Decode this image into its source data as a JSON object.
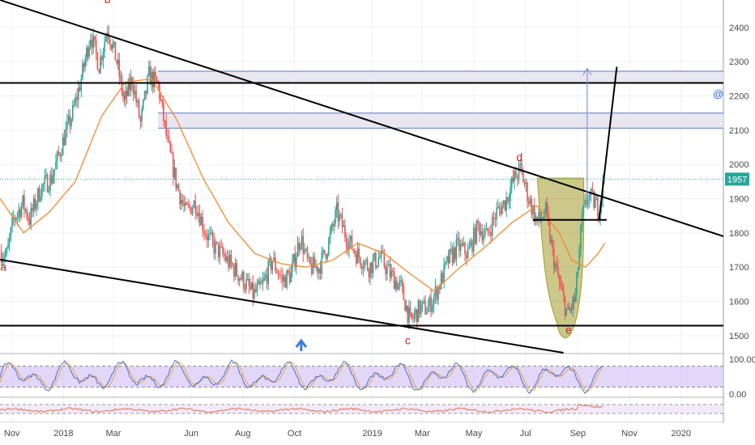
{
  "chart_data": {
    "type": "candlestick",
    "colors": {
      "up": "#26a69a",
      "down": "#ef5350",
      "ma": "#f28a2e",
      "hline": "#000000",
      "zone_line": "#5b7bc0",
      "zone_fill": "#e8e6ef",
      "cup": "#a29a2a",
      "price_badge": "#26a69a",
      "arrow": "#3b7dd8",
      "osc_band": "#d6c4f7",
      "osc_k": "#4d6bd6",
      "osc_d": "#e4a93b",
      "osc2": "#e1744c",
      "wave_label": "#c62828"
    },
    "grid": true,
    "y_axis": {
      "side": "right",
      "range": [
        1450,
        2480
      ],
      "ticks": [
        1500,
        1600,
        1700,
        1800,
        1900,
        2000,
        2100,
        2200,
        2300,
        2400
      ]
    },
    "x_axis": {
      "range": [
        "2017-10-18",
        "2020-02-20"
      ],
      "ticks": [
        {
          "date": "2017-11-01",
          "label": "Nov"
        },
        {
          "date": "2018-01-01",
          "label": "2018"
        },
        {
          "date": "2018-03-01",
          "label": "Mar"
        },
        {
          "date": "2018-06-01",
          "label": "Jun"
        },
        {
          "date": "2018-08-01",
          "label": "Aug"
        },
        {
          "date": "2018-10-01",
          "label": "Oct"
        },
        {
          "date": "2019-01-01",
          "label": "2019"
        },
        {
          "date": "2019-03-01",
          "label": "Mar"
        },
        {
          "date": "2019-05-01",
          "label": "May"
        },
        {
          "date": "2019-07-01",
          "label": "Jul"
        },
        {
          "date": "2019-09-01",
          "label": "Sep"
        },
        {
          "date": "2019-11-01",
          "label": "Nov"
        },
        {
          "date": "2020-01-01",
          "label": "2020"
        }
      ]
    },
    "price_path": [
      [
        "2017-10-18",
        1745
      ],
      [
        "2017-10-26",
        1735
      ],
      [
        "2017-11-03",
        1840
      ],
      [
        "2017-11-14",
        1885
      ],
      [
        "2017-11-22",
        1840
      ],
      [
        "2017-12-05",
        1930
      ],
      [
        "2017-12-18",
        1960
      ],
      [
        "2018-01-02",
        2080
      ],
      [
        "2018-01-12",
        2150
      ],
      [
        "2018-01-22",
        2250
      ],
      [
        "2018-02-02",
        2380
      ],
      [
        "2018-02-12",
        2290
      ],
      [
        "2018-02-22",
        2400
      ],
      [
        "2018-03-05",
        2300
      ],
      [
        "2018-03-14",
        2180
      ],
      [
        "2018-03-23",
        2250
      ],
      [
        "2018-04-02",
        2120
      ],
      [
        "2018-04-12",
        2260
      ],
      [
        "2018-04-23",
        2230
      ],
      [
        "2018-05-04",
        2060
      ],
      [
        "2018-05-14",
        1950
      ],
      [
        "2018-05-25",
        1860
      ],
      [
        "2018-06-06",
        1890
      ],
      [
        "2018-06-18",
        1800
      ],
      [
        "2018-06-28",
        1760
      ],
      [
        "2018-07-10",
        1730
      ],
      [
        "2018-07-20",
        1700
      ],
      [
        "2018-08-02",
        1660
      ],
      [
        "2018-08-13",
        1620
      ],
      [
        "2018-08-23",
        1640
      ],
      [
        "2018-09-05",
        1720
      ],
      [
        "2018-09-17",
        1660
      ],
      [
        "2018-09-27",
        1680
      ],
      [
        "2018-10-08",
        1790
      ],
      [
        "2018-10-18",
        1700
      ],
      [
        "2018-10-30",
        1700
      ],
      [
        "2018-11-09",
        1760
      ],
      [
        "2018-11-20",
        1860
      ],
      [
        "2018-12-03",
        1780
      ],
      [
        "2018-12-13",
        1740
      ],
      [
        "2018-12-28",
        1700
      ],
      [
        "2019-01-10",
        1730
      ],
      [
        "2019-01-22",
        1680
      ],
      [
        "2019-02-04",
        1640
      ],
      [
        "2019-02-15",
        1540
      ],
      [
        "2019-02-26",
        1580
      ],
      [
        "2019-03-08",
        1580
      ],
      [
        "2019-03-20",
        1640
      ],
      [
        "2019-04-01",
        1720
      ],
      [
        "2019-04-12",
        1760
      ],
      [
        "2019-04-24",
        1740
      ],
      [
        "2019-05-06",
        1820
      ],
      [
        "2019-05-16",
        1790
      ],
      [
        "2019-05-28",
        1860
      ],
      [
        "2019-06-07",
        1890
      ],
      [
        "2019-06-18",
        1960
      ],
      [
        "2019-06-25",
        1985
      ],
      [
        "2019-07-05",
        1900
      ],
      [
        "2019-07-15",
        1830
      ],
      [
        "2019-07-25",
        1860
      ],
      [
        "2019-08-02",
        1740
      ],
      [
        "2019-08-12",
        1630
      ],
      [
        "2019-08-20",
        1560
      ],
      [
        "2019-08-29",
        1610
      ],
      [
        "2019-09-06",
        1840
      ],
      [
        "2019-09-13",
        1910
      ],
      [
        "2019-09-20",
        1890
      ],
      [
        "2019-09-26",
        1870
      ],
      [
        "2019-10-02",
        1957
      ]
    ],
    "moving_average": [
      [
        "2017-10-18",
        1900
      ],
      [
        "2017-11-15",
        1800
      ],
      [
        "2017-12-15",
        1860
      ],
      [
        "2018-01-15",
        1950
      ],
      [
        "2018-02-15",
        2140
      ],
      [
        "2018-03-15",
        2240
      ],
      [
        "2018-04-15",
        2250
      ],
      [
        "2018-05-15",
        2130
      ],
      [
        "2018-06-15",
        1960
      ],
      [
        "2018-07-15",
        1830
      ],
      [
        "2018-08-15",
        1740
      ],
      [
        "2018-09-15",
        1710
      ],
      [
        "2018-10-15",
        1700
      ],
      [
        "2018-11-15",
        1720
      ],
      [
        "2018-12-15",
        1770
      ],
      [
        "2019-01-15",
        1740
      ],
      [
        "2019-02-15",
        1680
      ],
      [
        "2019-03-15",
        1630
      ],
      [
        "2019-04-15",
        1700
      ],
      [
        "2019-05-15",
        1760
      ],
      [
        "2019-06-15",
        1830
      ],
      [
        "2019-07-15",
        1880
      ],
      [
        "2019-08-10",
        1800
      ],
      [
        "2019-08-25",
        1720
      ],
      [
        "2019-09-10",
        1700
      ],
      [
        "2019-09-25",
        1740
      ],
      [
        "2019-10-03",
        1770
      ]
    ],
    "current_price": {
      "value": 1957,
      "label": "1957"
    },
    "horizontal_lines": [
      2238,
      1838,
      1529
    ],
    "resistance_zones": [
      [
        2238,
        2272
      ],
      [
        2106,
        2150
      ]
    ],
    "trendlines": [
      {
        "from": [
          "2017-10-18",
          2480
        ],
        "to": [
          "2020-02-20",
          1790
        ]
      },
      {
        "from": [
          "2017-10-18",
          1722
        ],
        "to": [
          "2019-08-15",
          1450
        ]
      },
      {
        "from": [
          "2019-09-26",
          1838
        ],
        "to": [
          "2019-10-17",
          2285
        ]
      }
    ],
    "cup": {
      "rim_start": [
        "2019-07-15",
        1960
      ],
      "rim_end": [
        "2019-09-08",
        1960
      ],
      "bottom": [
        "2019-08-21",
        1535
      ],
      "handle_end": [
        "2019-10-03",
        1770
      ]
    },
    "projection_arrow": {
      "date": "2019-09-12",
      "from": 1875,
      "to": 2280
    },
    "wave_labels": [
      {
        "text": "a",
        "date": "2017-10-22",
        "price": 1690
      },
      {
        "text": "b",
        "date": "2018-02-22",
        "price": 2470
      },
      {
        "text": "c",
        "date": "2019-02-12",
        "price": 1475
      },
      {
        "text": "d",
        "date": "2019-06-24",
        "price": 2010
      },
      {
        "text": "e",
        "date": "2019-08-21",
        "price": 1505
      }
    ],
    "annotations": [
      {
        "text": "@",
        "date": "2020-02-14",
        "price": 2195
      }
    ],
    "event_marker": {
      "date": "2018-10-09"
    },
    "oscillator_1": {
      "ticks": [
        {
          "value": 100,
          "label": "100.00"
        },
        {
          "value": 0,
          "label": "0.00"
        }
      ],
      "band": [
        20,
        80
      ]
    },
    "oscillator_2": {
      "ticks": []
    }
  }
}
